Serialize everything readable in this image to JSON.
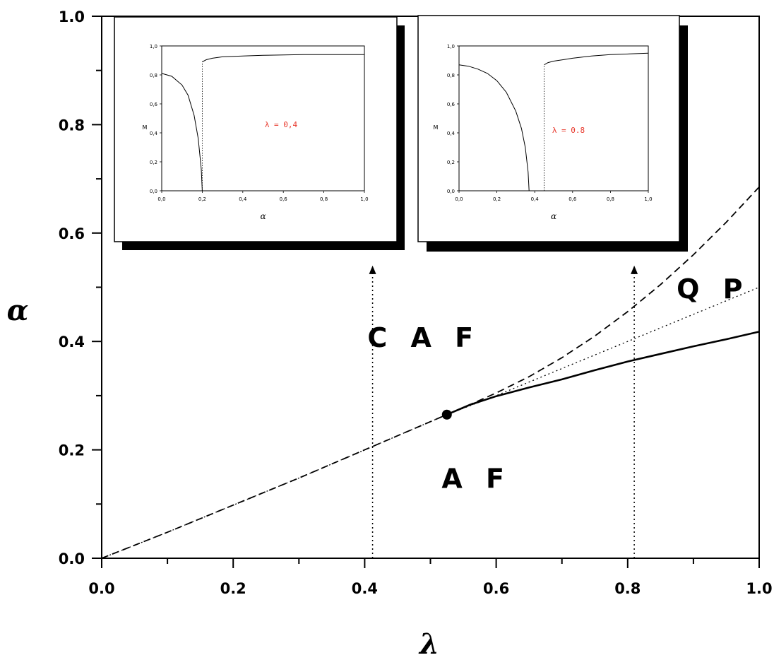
{
  "chart_data": {
    "type": "line",
    "title": "",
    "xlabel": "λ",
    "ylabel": "α",
    "xlim": [
      0.0,
      1.0
    ],
    "ylim": [
      0.0,
      1.0
    ],
    "xticks": [
      "0.0",
      "0.2",
      "0.4",
      "0.6",
      "0.8",
      "1.0"
    ],
    "yticks": [
      "0.0",
      "0.2",
      "0.4",
      "0.6",
      "0.8",
      "1.0"
    ],
    "grid": false,
    "legend": "none",
    "regions": [
      {
        "label": "C A F",
        "x": 0.49,
        "y": 0.39
      },
      {
        "label": "A F",
        "x": 0.57,
        "y": 0.13
      },
      {
        "label": "Q P",
        "x": 0.93,
        "y": 0.48
      }
    ],
    "series": [
      {
        "style": "solid",
        "x": [
          0.525,
          0.56,
          0.6,
          0.65,
          0.7,
          0.75,
          0.8,
          0.85,
          0.9,
          0.95,
          1.0
        ],
        "y": [
          0.265,
          0.283,
          0.299,
          0.315,
          0.33,
          0.347,
          0.363,
          0.377,
          0.391,
          0.404,
          0.418
        ]
      },
      {
        "style": "dashed",
        "x": [
          0.0,
          0.1,
          0.2,
          0.3,
          0.4,
          0.5,
          0.525,
          0.55,
          0.6,
          0.65,
          0.7,
          0.75,
          0.8,
          0.85,
          0.9,
          0.95,
          1.0
        ],
        "y": [
          0.0,
          0.048,
          0.098,
          0.148,
          0.2,
          0.252,
          0.265,
          0.278,
          0.305,
          0.335,
          0.37,
          0.41,
          0.455,
          0.505,
          0.56,
          0.62,
          0.685
        ]
      },
      {
        "style": "dotted",
        "x": [
          0.0,
          0.1,
          0.2,
          0.3,
          0.4,
          0.5,
          0.525,
          0.6,
          0.7,
          0.8,
          0.9,
          1.0
        ],
        "y": [
          0.0,
          0.048,
          0.098,
          0.148,
          0.2,
          0.252,
          0.265,
          0.3,
          0.35,
          0.4,
          0.45,
          0.5
        ]
      }
    ],
    "point": {
      "x": 0.525,
      "y": 0.265
    },
    "arrows": [
      {
        "x": 0.412,
        "y_from": 0.0,
        "y_to": 0.54
      },
      {
        "x": 0.81,
        "y_from": 0.0,
        "y_to": 0.54
      }
    ],
    "insets": [
      {
        "annotation": "λ =  0,4",
        "xlabel": "α",
        "ylabel": "M",
        "xticks": [
          "0,0",
          "0,2",
          "0,4",
          "0,6",
          "0,8",
          "1,0"
        ],
        "yticks": [
          "0,0",
          "0,2",
          "0,4",
          "0,6",
          "0,8",
          "1,0"
        ],
        "lower": {
          "x": [
            0.0,
            0.05,
            0.1,
            0.13,
            0.16,
            0.18,
            0.195,
            0.2
          ],
          "y": [
            0.81,
            0.79,
            0.73,
            0.66,
            0.52,
            0.36,
            0.15,
            0.0
          ]
        },
        "upper": {
          "x": [
            0.2,
            0.22,
            0.25,
            0.3,
            0.4,
            0.5,
            0.7,
            1.0
          ],
          "y": [
            0.89,
            0.905,
            0.915,
            0.925,
            0.93,
            0.935,
            0.94,
            0.94
          ]
        },
        "jump_x": 0.2
      },
      {
        "annotation": "λ =  0.8",
        "xlabel": "α",
        "ylabel": "M",
        "xticks": [
          "0,0",
          "0,2",
          "0,4",
          "0,6",
          "0,8",
          "1,0"
        ],
        "yticks": [
          "0,0",
          "0,2",
          "0,4",
          "0,6",
          "0,8",
          "1,0"
        ],
        "lower": {
          "x": [
            0.0,
            0.05,
            0.1,
            0.15,
            0.2,
            0.25,
            0.3,
            0.33,
            0.35,
            0.365,
            0.37
          ],
          "y": [
            0.87,
            0.86,
            0.84,
            0.81,
            0.76,
            0.68,
            0.55,
            0.43,
            0.3,
            0.13,
            0.0
          ]
        },
        "upper": {
          "x": [
            0.45,
            0.47,
            0.5,
            0.55,
            0.6,
            0.7,
            0.8,
            0.9,
            1.0
          ],
          "y": [
            0.87,
            0.885,
            0.895,
            0.905,
            0.915,
            0.93,
            0.94,
            0.945,
            0.95
          ]
        },
        "jump_x": 0.45
      }
    ]
  }
}
